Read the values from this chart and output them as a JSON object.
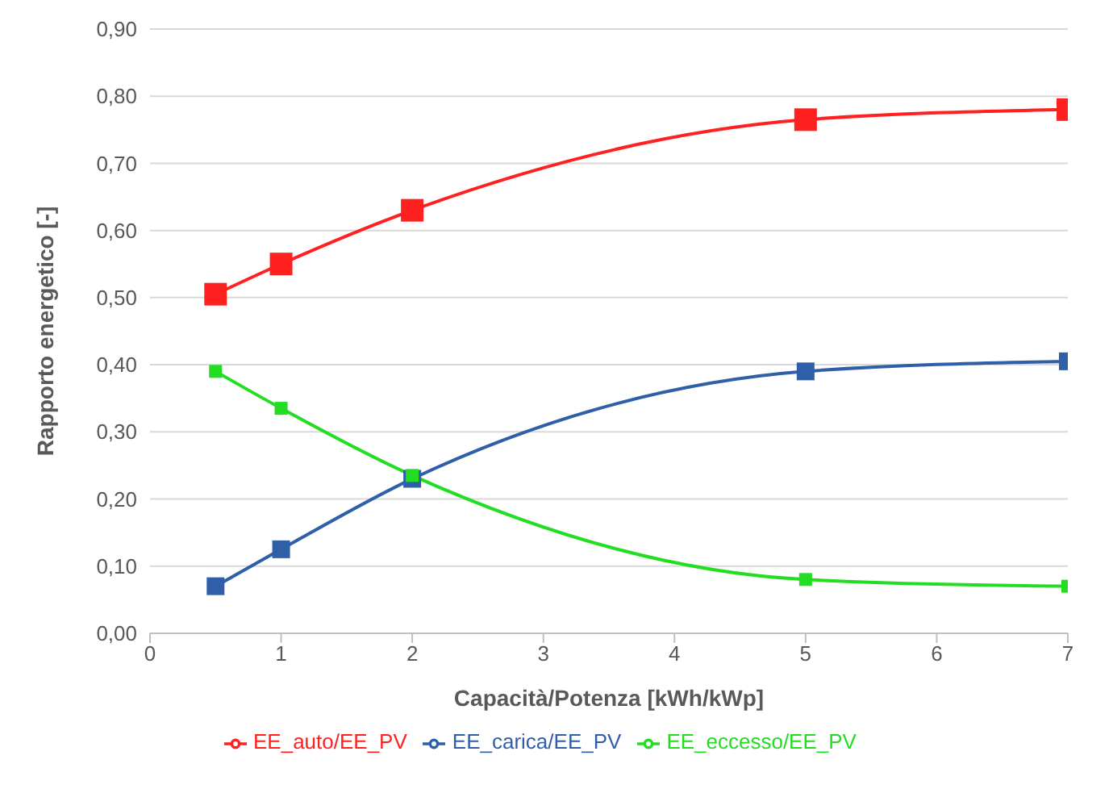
{
  "chart_data": {
    "type": "line",
    "xlabel": "Capacità/Potenza [kWh/kWp]",
    "ylabel": "Rapporto energetico [-]",
    "x": [
      0.5,
      1,
      2,
      5,
      7
    ],
    "series": [
      {
        "name": "EE_auto/EE_PV",
        "color": "#ff2020",
        "values": [
          0.505,
          0.55,
          0.63,
          0.765,
          0.78
        ]
      },
      {
        "name": "EE_carica/EE_PV",
        "color": "#2e5fa8",
        "values": [
          0.07,
          0.125,
          0.23,
          0.39,
          0.405
        ]
      },
      {
        "name": "EE_eccesso/EE_PV",
        "color": "#22dd22",
        "values": [
          0.39,
          0.335,
          0.235,
          0.08,
          0.07
        ]
      }
    ],
    "xlim": [
      0,
      7
    ],
    "xticks": [
      0,
      1,
      2,
      3,
      4,
      5,
      6,
      7
    ],
    "ylim": [
      0,
      0.9
    ],
    "yticks": [
      {
        "value": 0,
        "label": "0,00"
      },
      {
        "value": 0.1,
        "label": "0,10"
      },
      {
        "value": 0.2,
        "label": "0,20"
      },
      {
        "value": 0.3,
        "label": "0,30"
      },
      {
        "value": 0.4,
        "label": "0,40"
      },
      {
        "value": 0.5,
        "label": "0,50"
      },
      {
        "value": 0.6,
        "label": "0,60"
      },
      {
        "value": 0.7,
        "label": "0,70"
      },
      {
        "value": 0.8,
        "label": "0,80"
      },
      {
        "value": 0.9,
        "label": "0,90"
      }
    ],
    "grid": "y",
    "legend": "bottom",
    "marker": "square",
    "line_style": "solid"
  }
}
